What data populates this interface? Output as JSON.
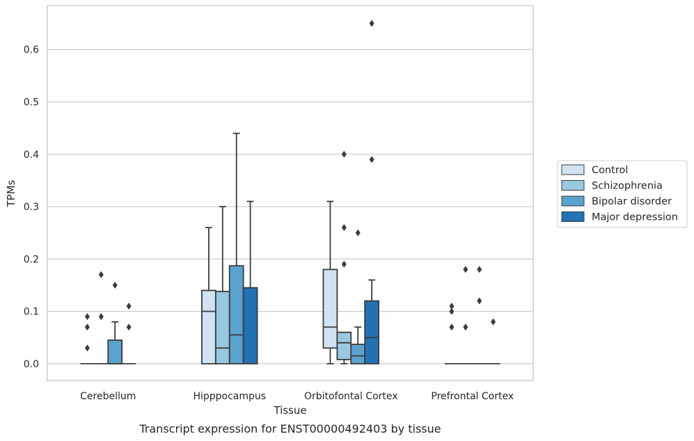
{
  "chart_data": {
    "type": "boxplot",
    "title": "",
    "caption": "Transcript expression for ENST00000492403 by tissue",
    "xlabel": "Tissue",
    "ylabel": "TPMs",
    "ylim": [
      -0.032,
      0.684
    ],
    "yticks": [
      "0.0",
      "0.1",
      "0.2",
      "0.3",
      "0.4",
      "0.5",
      "0.6"
    ],
    "grid": true,
    "legend_position": "right",
    "categories": [
      "Cerebellum",
      "Hipppocampus",
      "Orbitofontal Cortex",
      "Prefrontal Cortex"
    ],
    "series": [
      {
        "name": "Control",
        "color": "#d1e2f2",
        "boxes": [
          {
            "q1": 0,
            "median": 0,
            "q3": 0,
            "whisker_low": 0,
            "whisker_high": 0,
            "outliers": [
              0.03,
              0.07,
              0.09
            ]
          },
          {
            "q1": 0,
            "median": 0.1,
            "q3": 0.14,
            "whisker_low": 0,
            "whisker_high": 0.26,
            "outliers": []
          },
          {
            "q1": 0.03,
            "median": 0.07,
            "q3": 0.18,
            "whisker_low": 0,
            "whisker_high": 0.31,
            "outliers": []
          },
          {
            "q1": 0,
            "median": 0,
            "q3": 0,
            "whisker_low": 0,
            "whisker_high": 0,
            "outliers": [
              0.07,
              0.1,
              0.11
            ]
          }
        ]
      },
      {
        "name": "Schizophrenia",
        "color": "#9ac8e0",
        "boxes": [
          {
            "q1": 0,
            "median": 0,
            "q3": 0,
            "whisker_low": 0,
            "whisker_high": 0,
            "outliers": [
              0.09,
              0.17
            ]
          },
          {
            "q1": 0,
            "median": 0.03,
            "q3": 0.138,
            "whisker_low": 0,
            "whisker_high": 0.3,
            "outliers": []
          },
          {
            "q1": 0.008,
            "median": 0.04,
            "q3": 0.06,
            "whisker_low": 0,
            "whisker_high": 0.06,
            "outliers": [
              0.19,
              0.26,
              0.4
            ]
          },
          {
            "q1": 0,
            "median": 0,
            "q3": 0,
            "whisker_low": 0,
            "whisker_high": 0,
            "outliers": [
              0.07,
              0.18
            ]
          }
        ]
      },
      {
        "name": "Bipolar disorder",
        "color": "#5ba3cf",
        "boxes": [
          {
            "q1": 0,
            "median": 0,
            "q3": 0.045,
            "whisker_low": 0,
            "whisker_high": 0.08,
            "outliers": [
              0.15
            ]
          },
          {
            "q1": 0,
            "median": 0.055,
            "q3": 0.187,
            "whisker_low": 0,
            "whisker_high": 0.44,
            "outliers": []
          },
          {
            "q1": 0,
            "median": 0.015,
            "q3": 0.037,
            "whisker_low": 0,
            "whisker_high": 0.07,
            "outliers": [
              0.25
            ]
          },
          {
            "q1": 0,
            "median": 0,
            "q3": 0,
            "whisker_low": 0,
            "whisker_high": 0,
            "outliers": [
              0.12,
              0.18
            ]
          }
        ]
      },
      {
        "name": "Major depression",
        "color": "#2372b5",
        "boxes": [
          {
            "q1": 0,
            "median": 0,
            "q3": 0,
            "whisker_low": 0,
            "whisker_high": 0,
            "outliers": [
              0.07,
              0.11
            ]
          },
          {
            "q1": 0,
            "median": 0.145,
            "q3": 0.145,
            "whisker_low": 0,
            "whisker_high": 0.31,
            "outliers": []
          },
          {
            "q1": 0,
            "median": 0.05,
            "q3": 0.12,
            "whisker_low": 0,
            "whisker_high": 0.16,
            "outliers": [
              0.39,
              0.65
            ]
          },
          {
            "q1": 0,
            "median": 0,
            "q3": 0,
            "whisker_low": 0,
            "whisker_high": 0,
            "outliers": [
              0.08
            ]
          }
        ]
      }
    ]
  }
}
